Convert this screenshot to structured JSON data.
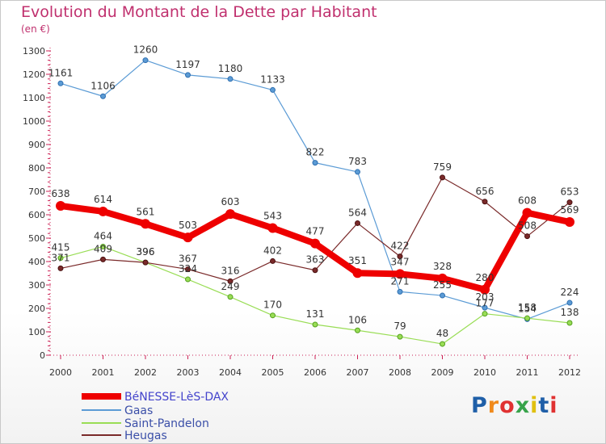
{
  "title": "Evolution du Montant de la Dette par Habitant",
  "subtitle": "(en €)",
  "logo": {
    "text": "Proxiti",
    "colors": [
      "#1f5fa8",
      "#f08a1c",
      "#e03131",
      "#37a34a",
      "#e0c010",
      "#1f5fa8",
      "#e03131"
    ]
  },
  "chart_data": {
    "type": "line",
    "title": "Evolution du Montant de la Dette par Habitant",
    "subtitle": "(en €)",
    "xlabel": "",
    "ylabel": "",
    "x": [
      "2000",
      "2001",
      "2002",
      "2003",
      "2004",
      "2005",
      "2006",
      "2007",
      "2008",
      "2009",
      "2010",
      "2011",
      "2012"
    ],
    "ylim": [
      0,
      1300
    ],
    "yticks": [
      "0",
      "100",
      "200",
      "300",
      "400",
      "500",
      "600",
      "700",
      "800",
      "900",
      "1000",
      "1100",
      "1200",
      "1300"
    ],
    "grid": "none",
    "legend_position": "bottom-left",
    "series": [
      {
        "name": "BéNESSE-LèS-DAX",
        "color": "#ee0000",
        "values": [
          638,
          614,
          561,
          503,
          603,
          543,
          477,
          351,
          347,
          328,
          280,
          608,
          569
        ]
      },
      {
        "name": "Gaas",
        "color": "#5b9bd5",
        "values": [
          1161,
          1106,
          1260,
          1197,
          1180,
          1133,
          822,
          783,
          271,
          255,
          203,
          154,
          224
        ]
      },
      {
        "name": "Saint-Pandelon",
        "color": "#99dd55",
        "values": [
          415,
          464,
          396,
          324,
          249,
          170,
          131,
          106,
          79,
          48,
          177,
          158,
          138
        ]
      },
      {
        "name": "Heugas",
        "color": "#7a2a2a",
        "values": [
          371,
          409,
          396,
          367,
          316,
          402,
          363,
          564,
          422,
          759,
          656,
          508,
          653
        ]
      }
    ]
  }
}
